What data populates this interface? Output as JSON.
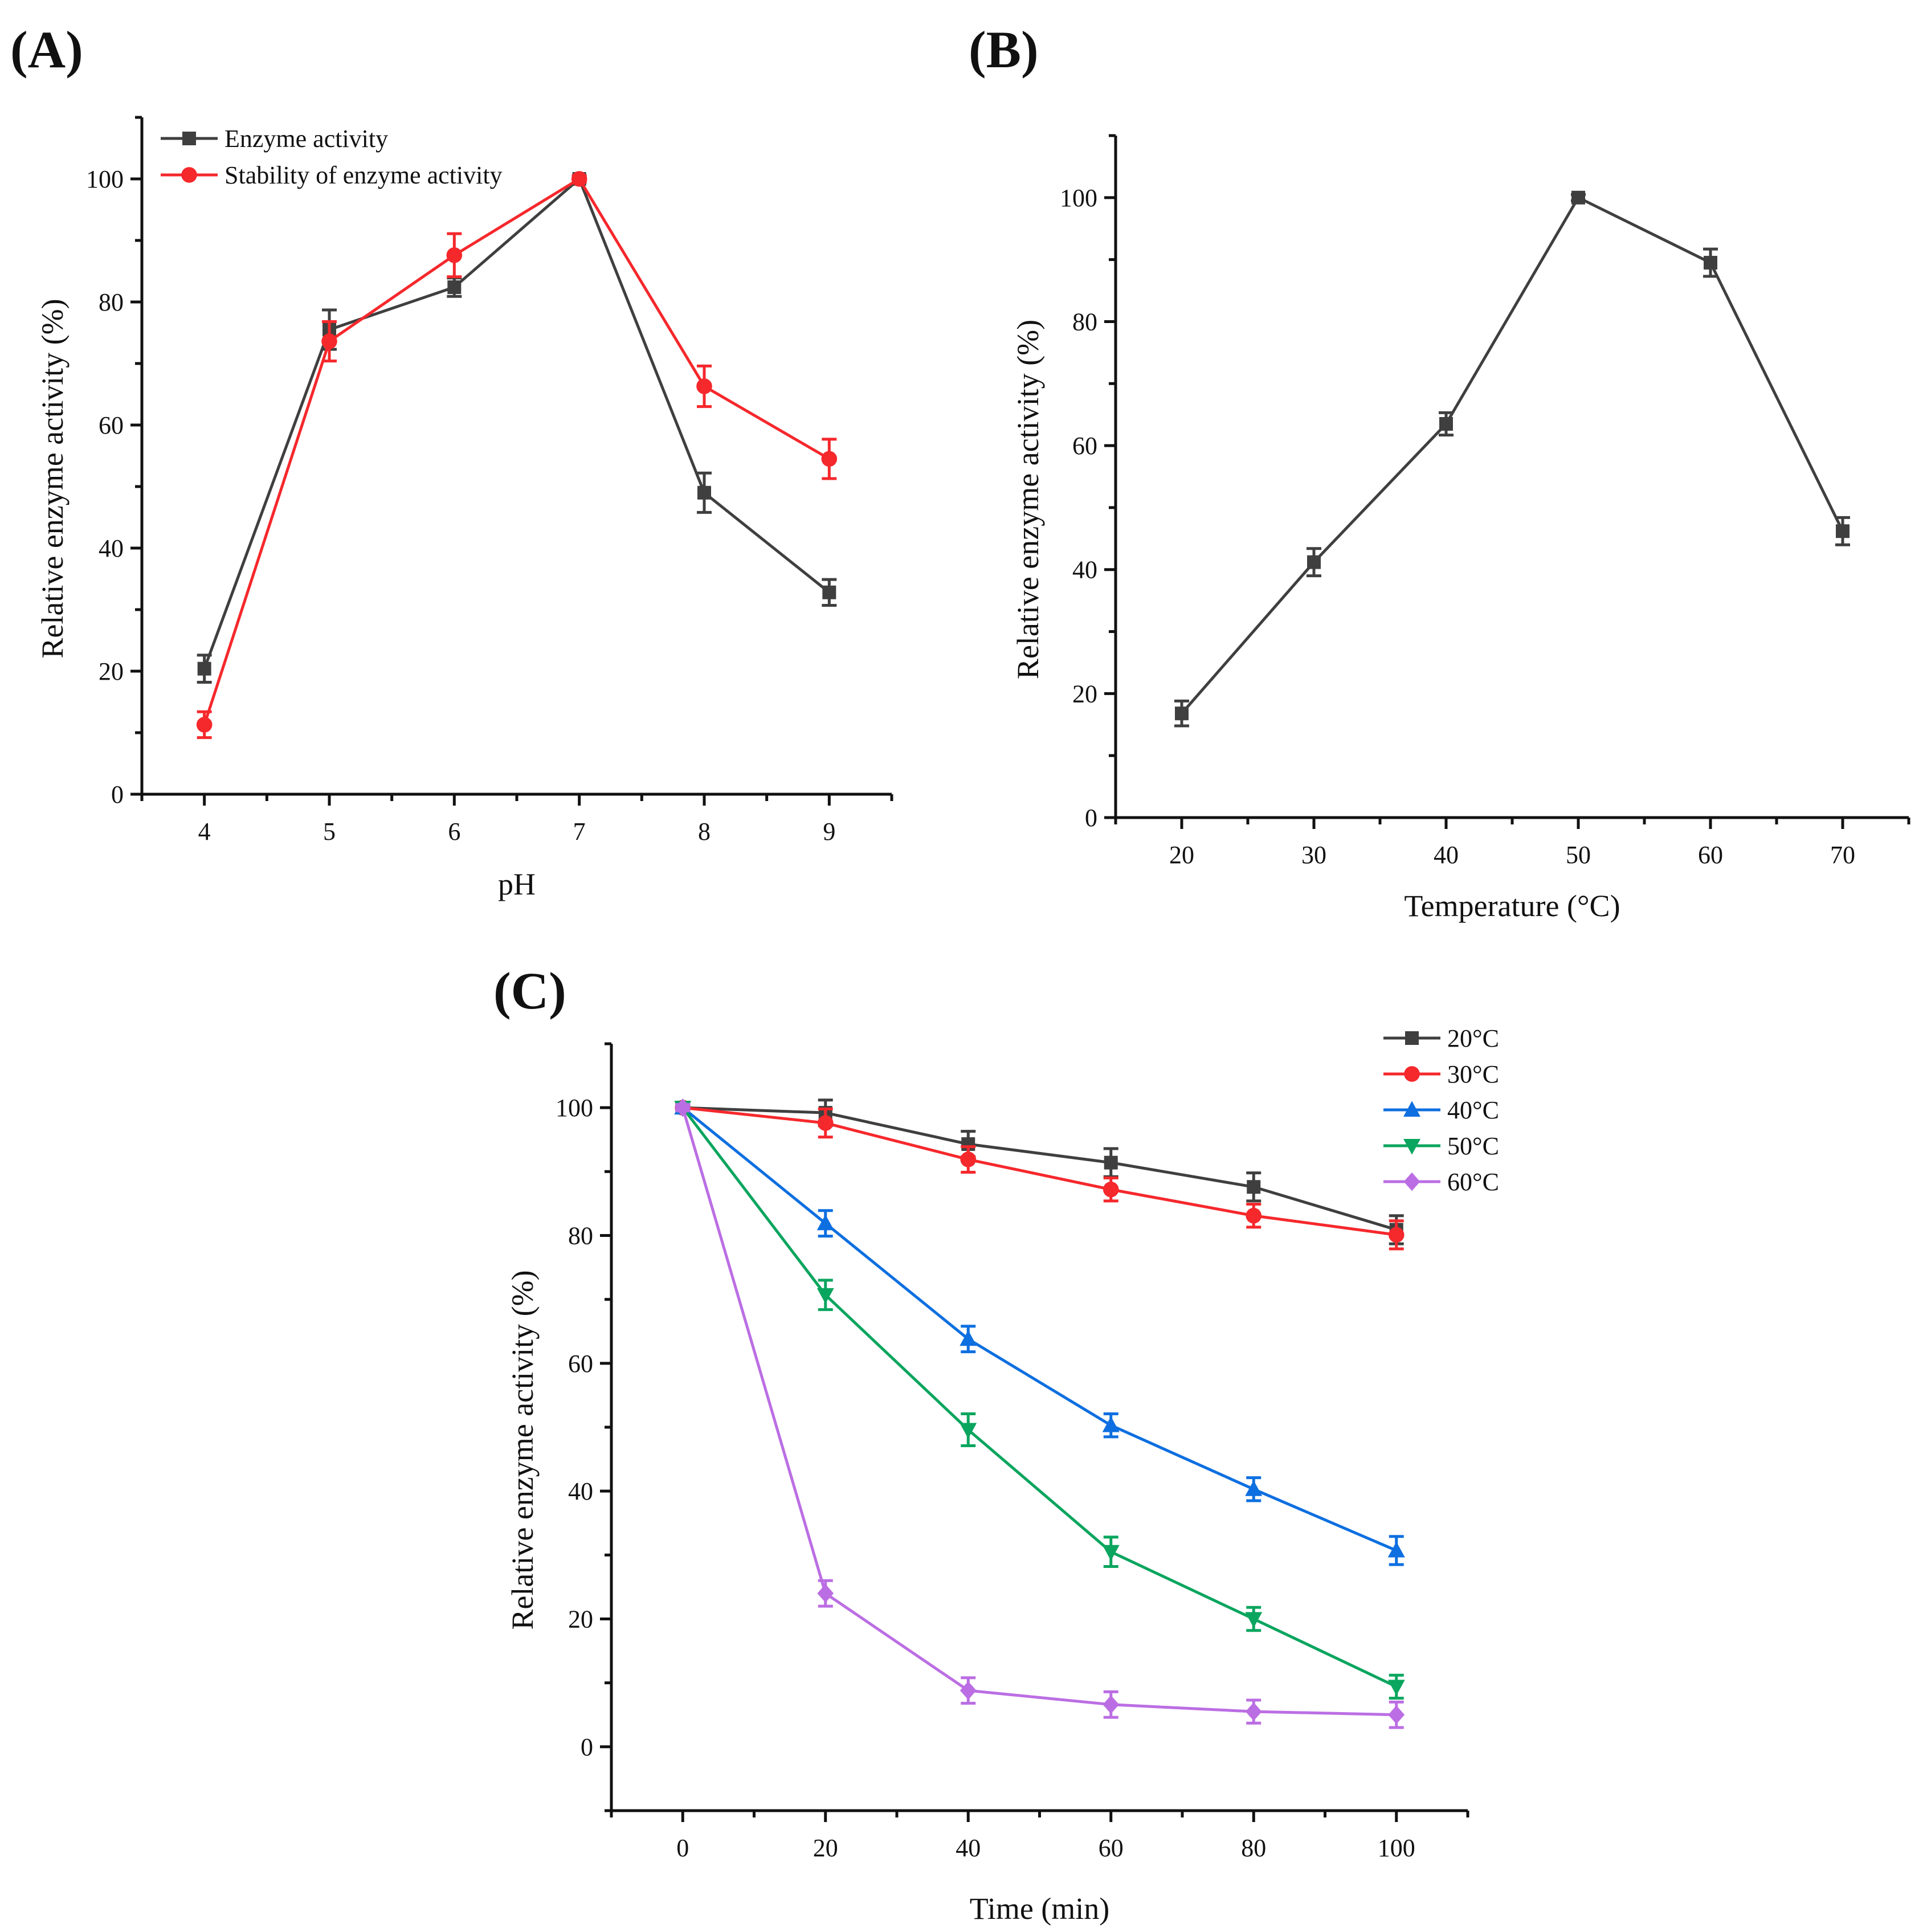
{
  "chart_data": [
    {
      "panel": "(A)",
      "type": "line",
      "xlabel": "pH",
      "ylabel": "Relative enzyme activity (%)",
      "xlim": [
        3.5,
        9.5
      ],
      "ylim": [
        0,
        110
      ],
      "xticks": [
        4,
        5,
        6,
        7,
        8,
        9
      ],
      "yticks": [
        0,
        20,
        40,
        60,
        80,
        100
      ],
      "x_minor_step": 0.5,
      "y_minor_step": 10,
      "legend": "top-left",
      "x": [
        4,
        5,
        6,
        7,
        8,
        9
      ],
      "series": [
        {
          "name": "Enzyme activity",
          "color": "#3f3f3f",
          "marker": "square",
          "values": [
            20.4,
            75.5,
            82.4,
            100,
            49.0,
            32.8
          ],
          "errors": [
            2.2,
            3.2,
            1.5,
            0.5,
            3.2,
            2.1
          ]
        },
        {
          "name": "Stability of enzyme activity",
          "color": "#f5282c",
          "marker": "circle",
          "values": [
            11.3,
            73.6,
            87.6,
            100,
            66.3,
            54.5
          ],
          "errors": [
            2.1,
            3.2,
            3.5,
            0.5,
            3.3,
            3.2
          ]
        }
      ]
    },
    {
      "panel": "(B)",
      "type": "line",
      "xlabel": "Temperature (°C)",
      "ylabel": "Relative enzyme activity (%)",
      "xlim": [
        15,
        75
      ],
      "ylim": [
        0,
        110
      ],
      "xticks": [
        20,
        30,
        40,
        50,
        60,
        70
      ],
      "yticks": [
        0,
        20,
        40,
        60,
        80,
        100
      ],
      "x_minor_step": 5,
      "y_minor_step": 10,
      "legend": "none",
      "x": [
        20,
        30,
        40,
        50,
        60,
        70
      ],
      "series": [
        {
          "name": "Relative enzyme activity",
          "color": "#3f3f3f",
          "marker": "square",
          "values": [
            16.8,
            41.2,
            63.5,
            100,
            89.5,
            46.2
          ],
          "errors": [
            2.0,
            2.2,
            1.8,
            0.5,
            2.2,
            2.2
          ]
        }
      ]
    },
    {
      "panel": "(C)",
      "type": "line",
      "xlabel": "Time (min)",
      "ylabel": "Relative enzyme activity (%)",
      "xlim": [
        -10,
        110
      ],
      "ylim": [
        -10,
        110
      ],
      "xticks": [
        0,
        20,
        40,
        60,
        80,
        100
      ],
      "yticks": [
        0,
        20,
        40,
        60,
        80,
        100
      ],
      "x_minor_step": 10,
      "y_minor_step": 10,
      "legend": "top-right",
      "x": [
        0,
        20,
        40,
        60,
        80,
        100
      ],
      "series": [
        {
          "name": "20°C",
          "color": "#3f3f3f",
          "marker": "square",
          "values": [
            100,
            99.2,
            94.3,
            91.4,
            87.6,
            80.9
          ],
          "errors": [
            0.5,
            2.0,
            2.0,
            2.2,
            2.2,
            2.2
          ]
        },
        {
          "name": "30°C",
          "color": "#f5282c",
          "marker": "circle",
          "values": [
            100,
            97.6,
            91.9,
            87.2,
            83.1,
            80.1
          ],
          "errors": [
            0.5,
            2.2,
            2.0,
            1.8,
            1.8,
            2.2
          ]
        },
        {
          "name": "40°C",
          "color": "#0d6fe0",
          "marker": "triangle-up",
          "values": [
            100,
            81.9,
            63.8,
            50.3,
            40.3,
            30.7
          ],
          "errors": [
            0.5,
            2.0,
            2.0,
            1.8,
            1.8,
            2.2
          ]
        },
        {
          "name": "50°C",
          "color": "#0aa55e",
          "marker": "triangle-down",
          "values": [
            100,
            70.7,
            49.6,
            30.5,
            20.0,
            9.4
          ],
          "errors": [
            0.5,
            2.3,
            2.5,
            2.3,
            1.8,
            1.8
          ]
        },
        {
          "name": "60°C",
          "color": "#bb6ee3",
          "marker": "diamond",
          "values": [
            100,
            24.0,
            8.8,
            6.6,
            5.5,
            5.0
          ],
          "errors": [
            0.5,
            2.0,
            2.0,
            2.0,
            1.8,
            2.0
          ]
        }
      ]
    }
  ]
}
